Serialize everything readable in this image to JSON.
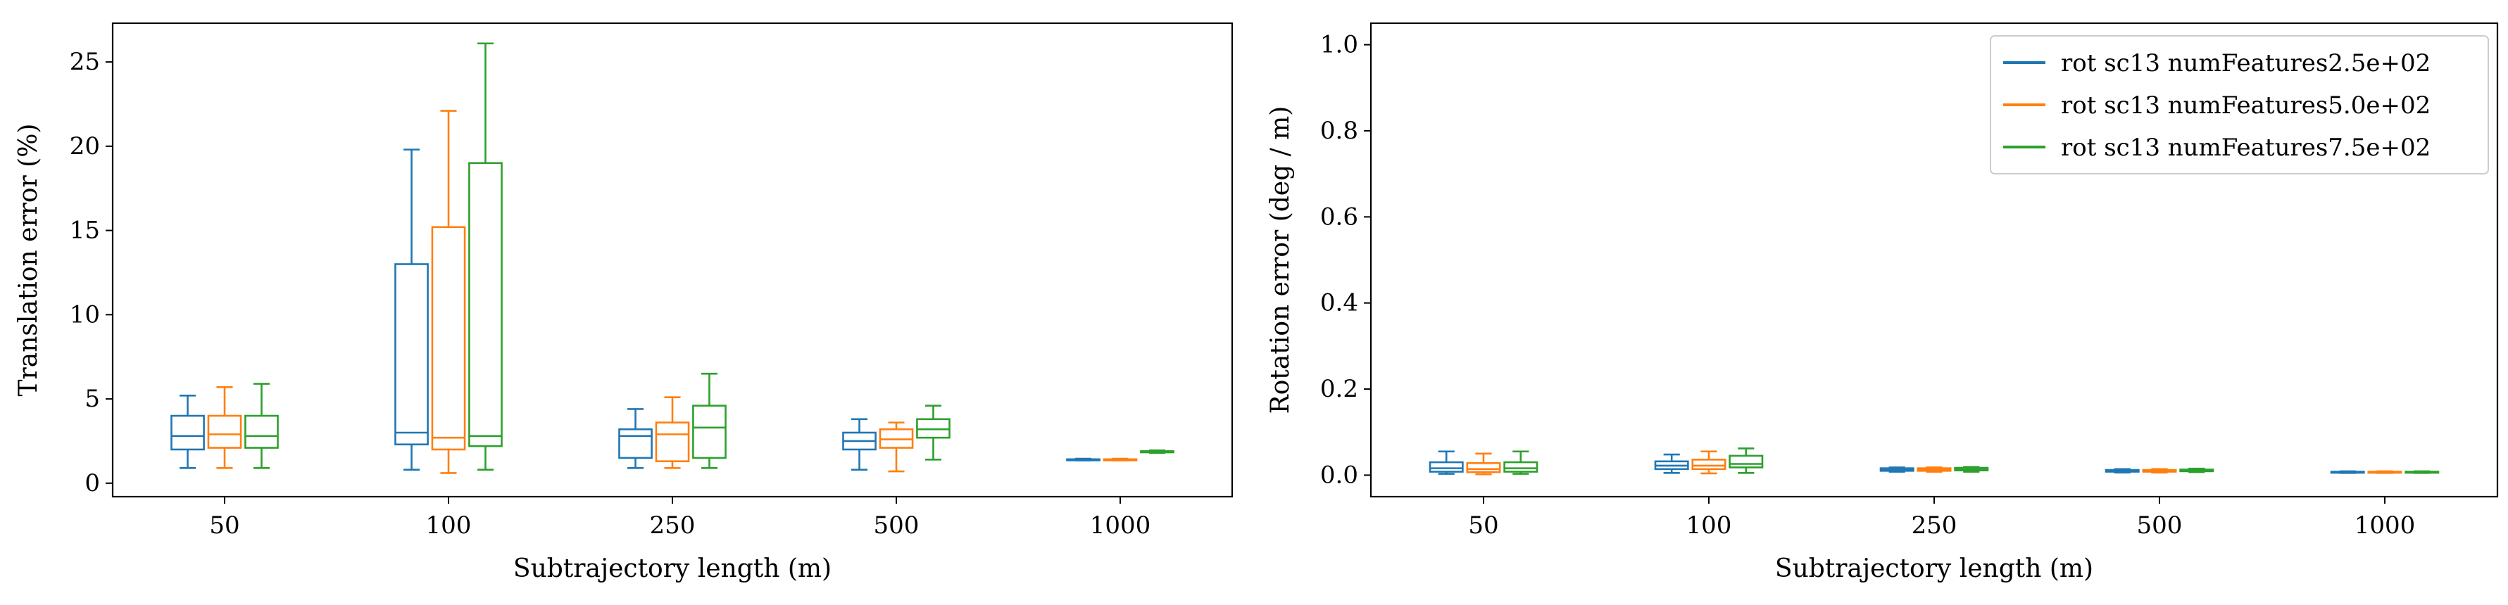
{
  "chart_data": [
    {
      "type": "box",
      "xlabel": "Subtrajectory length (m)",
      "ylabel": "Translation error (%)",
      "ylim": [
        -0.8,
        27.3
      ],
      "yticks": [
        0,
        5,
        10,
        15,
        20,
        25
      ],
      "categories": [
        "50",
        "100",
        "250",
        "500",
        "1000"
      ],
      "series": [
        {
          "name": "rot sc13 numFeatures2.5e+02",
          "color": "#1f77b4",
          "boxes": [
            {
              "whislo": 0.9,
              "q1": 2.0,
              "med": 2.8,
              "q3": 4.0,
              "whishi": 5.2
            },
            {
              "whislo": 0.8,
              "q1": 2.3,
              "med": 3.0,
              "q3": 13.0,
              "whishi": 19.8
            },
            {
              "whislo": 0.9,
              "q1": 1.5,
              "med": 2.8,
              "q3": 3.2,
              "whishi": 4.4
            },
            {
              "whislo": 0.8,
              "q1": 2.0,
              "med": 2.5,
              "q3": 3.0,
              "whishi": 3.8
            },
            {
              "whislo": 1.35,
              "q1": 1.38,
              "med": 1.4,
              "q3": 1.42,
              "whishi": 1.45
            }
          ]
        },
        {
          "name": "rot sc13 numFeatures5.0e+02",
          "color": "#ff7f0e",
          "boxes": [
            {
              "whislo": 0.9,
              "q1": 2.1,
              "med": 2.9,
              "q3": 4.0,
              "whishi": 5.7
            },
            {
              "whislo": 0.6,
              "q1": 2.0,
              "med": 2.7,
              "q3": 15.2,
              "whishi": 22.1
            },
            {
              "whislo": 0.9,
              "q1": 1.3,
              "med": 2.9,
              "q3": 3.6,
              "whishi": 5.1
            },
            {
              "whislo": 0.7,
              "q1": 2.1,
              "med": 2.6,
              "q3": 3.2,
              "whishi": 3.6
            },
            {
              "whislo": 1.35,
              "q1": 1.38,
              "med": 1.4,
              "q3": 1.42,
              "whishi": 1.45
            }
          ]
        },
        {
          "name": "rot sc13 numFeatures7.5e+02",
          "color": "#2ca02c",
          "boxes": [
            {
              "whislo": 0.9,
              "q1": 2.1,
              "med": 2.8,
              "q3": 4.0,
              "whishi": 5.9
            },
            {
              "whislo": 0.8,
              "q1": 2.2,
              "med": 2.8,
              "q3": 19.0,
              "whishi": 26.1
            },
            {
              "whislo": 0.9,
              "q1": 1.5,
              "med": 3.3,
              "q3": 4.6,
              "whishi": 6.5
            },
            {
              "whislo": 1.4,
              "q1": 2.7,
              "med": 3.2,
              "q3": 3.8,
              "whishi": 4.6
            },
            {
              "whislo": 1.8,
              "q1": 1.83,
              "med": 1.86,
              "q3": 1.9,
              "whishi": 1.95
            }
          ]
        }
      ]
    },
    {
      "type": "box",
      "xlabel": "Subtrajectory length (m)",
      "ylabel": "Rotation error (deg / m)",
      "ylim": [
        -0.05,
        1.05
      ],
      "yticks": [
        0.0,
        0.2,
        0.4,
        0.6,
        0.8,
        1.0
      ],
      "categories": [
        "50",
        "100",
        "250",
        "500",
        "1000"
      ],
      "legend": "top-right",
      "series": [
        {
          "name": "rot sc13 numFeatures2.5e+02",
          "color": "#1f77b4",
          "boxes": [
            {
              "whislo": 0.003,
              "q1": 0.008,
              "med": 0.016,
              "q3": 0.03,
              "whishi": 0.055
            },
            {
              "whislo": 0.005,
              "q1": 0.014,
              "med": 0.022,
              "q3": 0.032,
              "whishi": 0.048
            },
            {
              "whislo": 0.008,
              "q1": 0.01,
              "med": 0.012,
              "q3": 0.016,
              "whishi": 0.018
            },
            {
              "whislo": 0.006,
              "q1": 0.008,
              "med": 0.01,
              "q3": 0.012,
              "whishi": 0.014
            },
            {
              "whislo": 0.005,
              "q1": 0.006,
              "med": 0.007,
              "q3": 0.008,
              "whishi": 0.009
            }
          ]
        },
        {
          "name": "rot sc13 numFeatures5.0e+02",
          "color": "#ff7f0e",
          "boxes": [
            {
              "whislo": 0.002,
              "q1": 0.007,
              "med": 0.014,
              "q3": 0.028,
              "whishi": 0.05
            },
            {
              "whislo": 0.004,
              "q1": 0.014,
              "med": 0.022,
              "q3": 0.036,
              "whishi": 0.055
            },
            {
              "whislo": 0.008,
              "q1": 0.01,
              "med": 0.012,
              "q3": 0.016,
              "whishi": 0.018
            },
            {
              "whislo": 0.006,
              "q1": 0.008,
              "med": 0.01,
              "q3": 0.012,
              "whishi": 0.014
            },
            {
              "whislo": 0.005,
              "q1": 0.006,
              "med": 0.007,
              "q3": 0.008,
              "whishi": 0.009
            }
          ]
        },
        {
          "name": "rot sc13 numFeatures7.5e+02",
          "color": "#2ca02c",
          "boxes": [
            {
              "whislo": 0.003,
              "q1": 0.008,
              "med": 0.016,
              "q3": 0.03,
              "whishi": 0.055
            },
            {
              "whislo": 0.005,
              "q1": 0.018,
              "med": 0.026,
              "q3": 0.045,
              "whishi": 0.062
            },
            {
              "whislo": 0.008,
              "q1": 0.011,
              "med": 0.013,
              "q3": 0.017,
              "whishi": 0.019
            },
            {
              "whislo": 0.007,
              "q1": 0.009,
              "med": 0.011,
              "q3": 0.013,
              "whishi": 0.015
            },
            {
              "whislo": 0.005,
              "q1": 0.006,
              "med": 0.007,
              "q3": 0.008,
              "whishi": 0.009
            }
          ]
        }
      ]
    }
  ]
}
